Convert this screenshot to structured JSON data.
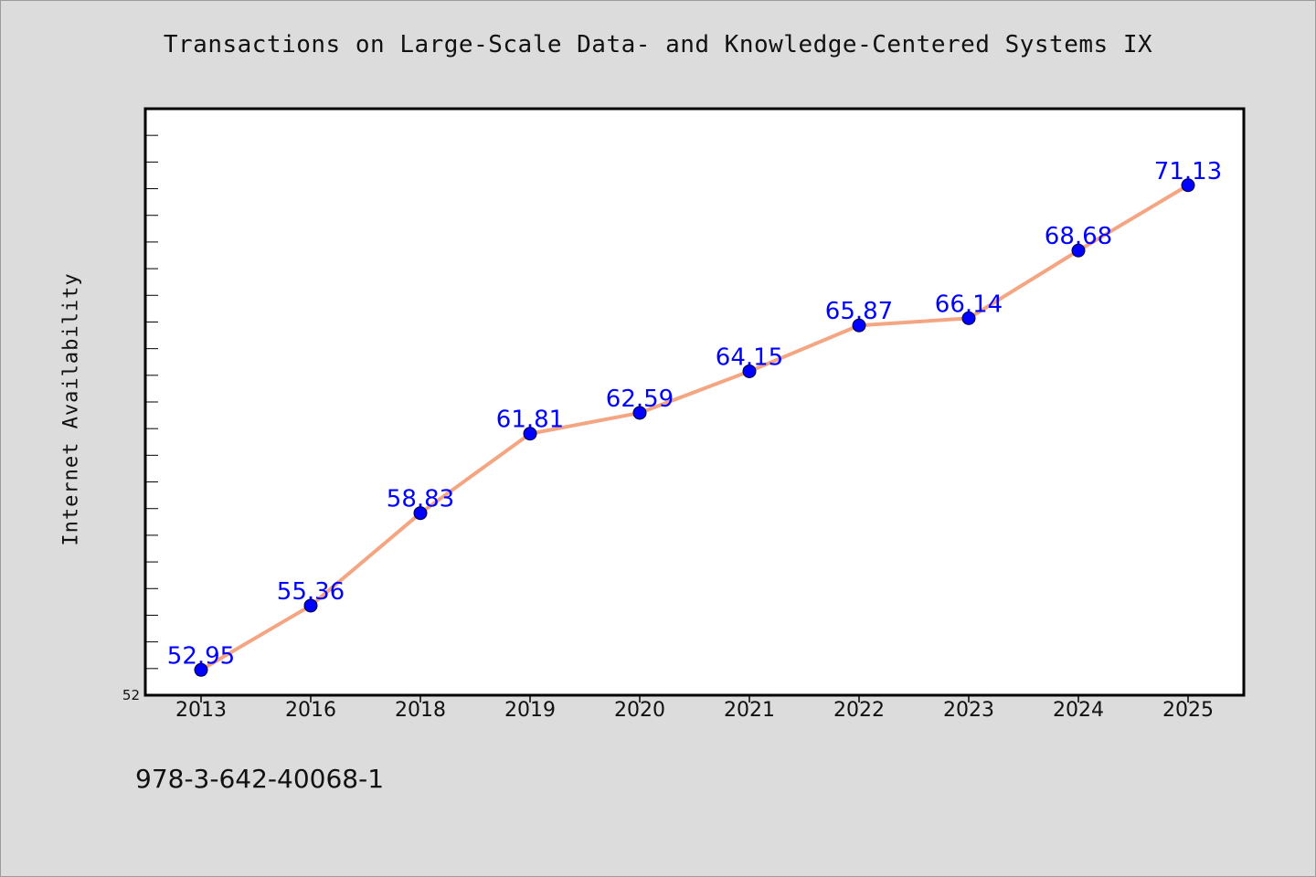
{
  "chart_data": {
    "type": "line",
    "title": "Transactions on Large-Scale Data- and Knowledge-Centered Systems IX",
    "xlabel": "",
    "ylabel": "Internet Availability",
    "categories": [
      "2013",
      "2016",
      "2018",
      "2019",
      "2020",
      "2021",
      "2022",
      "2023",
      "2024",
      "2025"
    ],
    "series": [
      {
        "values": [
          52.95,
          55.36,
          58.83,
          61.81,
          62.59,
          64.15,
          65.87,
          66.14,
          68.68,
          71.13
        ]
      }
    ],
    "ylim": [
      52,
      74
    ],
    "y_tick_labels": [
      "52"
    ],
    "data_labels": [
      "52.95",
      "55.36",
      "58.83",
      "61.81",
      "62.59",
      "64.15",
      "65.87",
      "66.14",
      "68.68",
      "71.13"
    ],
    "grid": false,
    "legend": "none"
  },
  "footer": {
    "isbn": "978-3-642-40068-1"
  },
  "colors": {
    "background": "#dcdcdc",
    "plot_background": "#ffffff",
    "line": "#f4a582",
    "marker": "#0000ff",
    "data_label": "#0000ff"
  }
}
